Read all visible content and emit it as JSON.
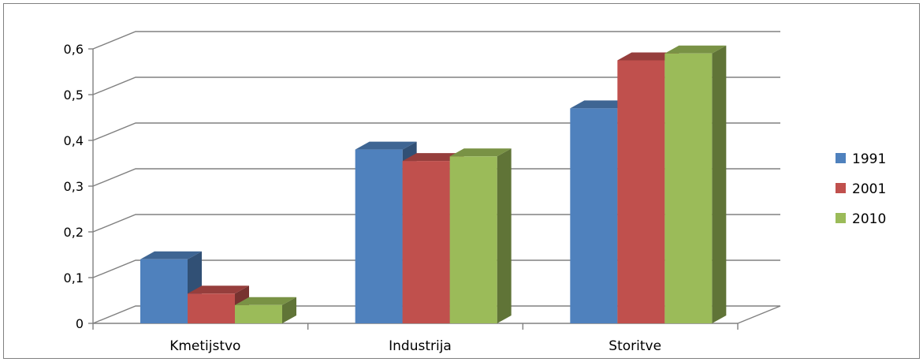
{
  "chart_data": {
    "type": "bar",
    "title": "",
    "xlabel": "",
    "ylabel": "",
    "categories": [
      "Kmetijstvo",
      "Industrija",
      "Storitve"
    ],
    "series": [
      {
        "name": "1991",
        "color": "#4F81BD",
        "values": [
          0.14,
          0.38,
          0.47
        ]
      },
      {
        "name": "2001",
        "color": "#C0504D",
        "values": [
          0.065,
          0.355,
          0.575
        ]
      },
      {
        "name": "2010",
        "color": "#9BBB59",
        "values": [
          0.04,
          0.365,
          0.59
        ]
      }
    ],
    "ylim": [
      0,
      0.6
    ],
    "yticks": [
      "0",
      "0,1",
      "0,2",
      "0,3",
      "0,4",
      "0,5",
      "0,6"
    ],
    "grid": true,
    "legend": "right",
    "style": "3d-clustered-column"
  }
}
